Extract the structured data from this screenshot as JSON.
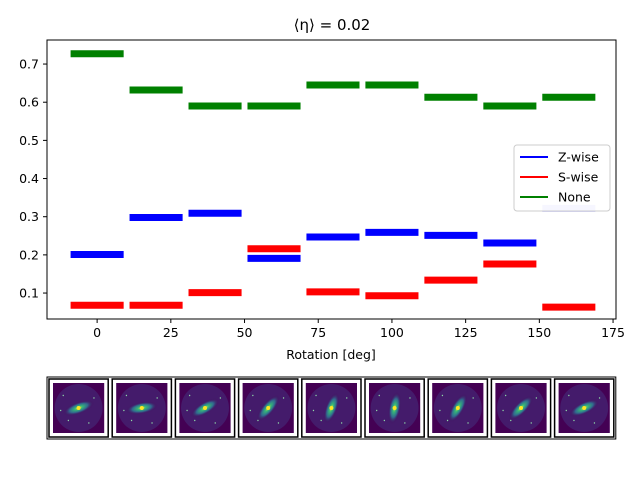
{
  "chart_data": {
    "type": "line",
    "title": "⟨η⟩ =  0.02",
    "xlabel": "Rotation [deg]",
    "ylabel": "",
    "xlim": [
      -17,
      176
    ],
    "ylim": [
      0.032,
      0.763
    ],
    "xticks": [
      0,
      25,
      50,
      75,
      100,
      125,
      150,
      175
    ],
    "yticks": [
      0.1,
      0.2,
      0.3,
      0.4,
      0.5,
      0.6,
      0.7
    ],
    "grid": false,
    "legend_position": "center-right",
    "segment_half_width": 9,
    "x": [
      0,
      20,
      40,
      60,
      80,
      100,
      120,
      140,
      160
    ],
    "series": [
      {
        "name": "Z-wise",
        "color": "#0000ff",
        "values": [
          0.201,
          0.298,
          0.309,
          0.191,
          0.247,
          0.259,
          0.251,
          0.231,
          0.322
        ],
        "faded_index": 8,
        "faded_color": "#c4c4ff"
      },
      {
        "name": "S-wise",
        "color": "#ff0000",
        "values": [
          0.068,
          0.068,
          0.101,
          0.216,
          0.103,
          0.093,
          0.134,
          0.176,
          0.063
        ]
      },
      {
        "name": "None",
        "color": "#008000",
        "values": [
          0.727,
          0.632,
          0.59,
          0.59,
          0.645,
          0.645,
          0.613,
          0.59,
          0.613
        ]
      }
    ],
    "thumbnails": {
      "count": 9,
      "background": "#440154",
      "galaxy_angles_deg": [
        -20,
        -10,
        -30,
        -50,
        -70,
        -80,
        -60,
        -45,
        -25
      ]
    }
  }
}
